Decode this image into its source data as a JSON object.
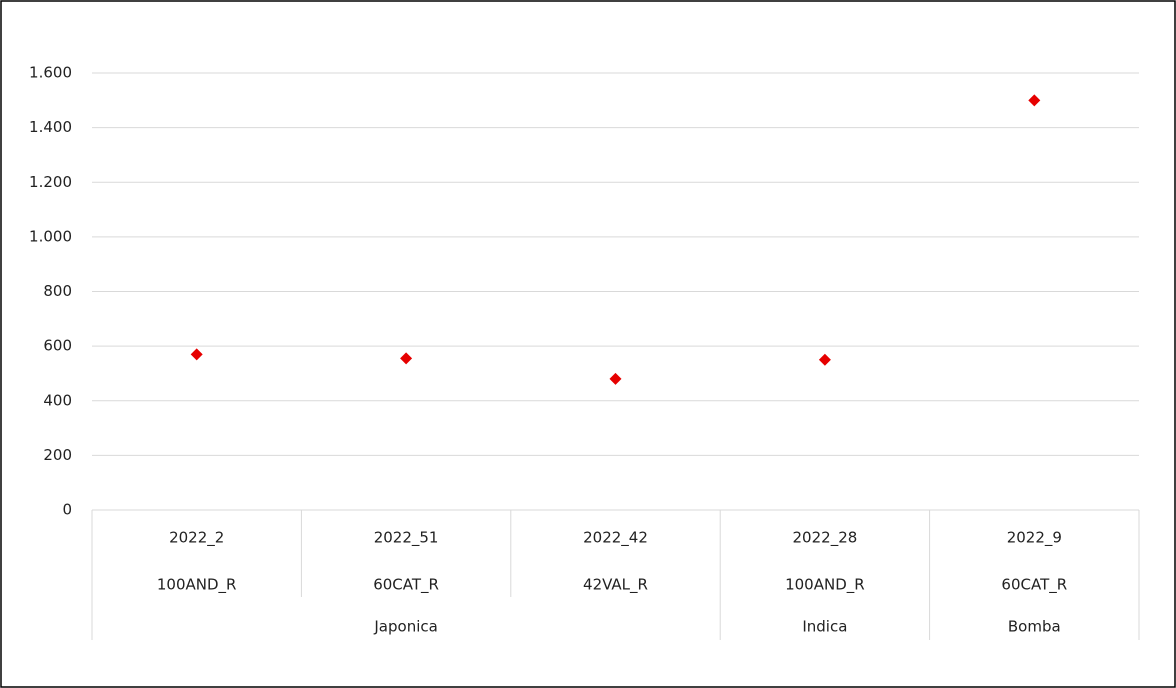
{
  "chart_data": {
    "type": "dot",
    "categories": [
      "2022_2",
      "2022_51",
      "2022_42",
      "2022_28",
      "2022_9"
    ],
    "subcategories": [
      "100AND_R",
      "60CAT_R",
      "42VAL_R",
      "100AND_R",
      "60CAT_R"
    ],
    "group_labels": [
      "Japonica",
      null,
      null,
      "Indica",
      "Bomba"
    ],
    "values": [
      570,
      555,
      480,
      550,
      1500
    ],
    "color": "#e60000",
    "ylim": [
      0,
      1600
    ],
    "yticks": [
      0,
      200,
      400,
      600,
      800,
      {
        "value": 1000,
        "label": "1.000"
      },
      {
        "value": 1200,
        "label": "1.200"
      },
      {
        "value": 1400,
        "label": "1.400"
      },
      {
        "value": 1600,
        "label": "1.600"
      }
    ],
    "grid": true
  }
}
